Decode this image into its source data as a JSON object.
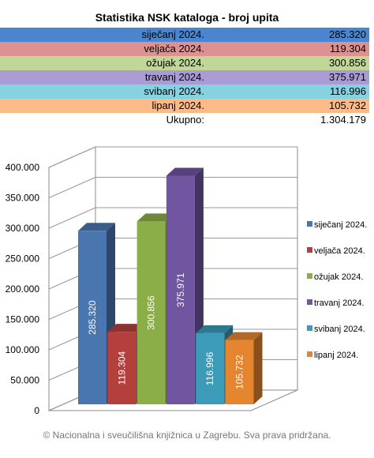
{
  "title": "Statistika NSK kataloga - broj upita",
  "table": {
    "rows": [
      {
        "label": "siječanj 2024.",
        "value": "285.320",
        "color": "#4a86d0"
      },
      {
        "label": "veljača 2024.",
        "value": "119.304",
        "color": "#dd9291"
      },
      {
        "label": "ožujak 2024.",
        "value": "300.856",
        "color": "#c0d797"
      },
      {
        "label": "travanj 2024.",
        "value": "375.971",
        "color": "#a99cd2"
      },
      {
        "label": "svibanj 2024.",
        "value": "116.996",
        "color": "#86d2e0"
      },
      {
        "label": "lipanj 2024.",
        "value": "105.732",
        "color": "#fbbb88"
      }
    ],
    "total_label": "Ukupno:",
    "total_value": "1.304.179"
  },
  "chart_data": {
    "type": "bar",
    "categories": [
      "siječanj 2024.",
      "veljača 2024.",
      "ožujak 2024.",
      "travanj 2024.",
      "svibanj 2024.",
      "lipanj 2024."
    ],
    "values": [
      285320,
      119304,
      300856,
      375971,
      116996,
      105732
    ],
    "value_labels": [
      "285.320",
      "119.304",
      "300.856",
      "375.971",
      "116.996",
      "105.732"
    ],
    "colors": [
      "#4a76b0",
      "#b4403d",
      "#8cae48",
      "#7055a0",
      "#3c9bb8",
      "#e5852f"
    ],
    "ylim": [
      0,
      400000
    ],
    "yticks": [
      0,
      50000,
      100000,
      150000,
      200000,
      250000,
      300000,
      350000,
      400000
    ],
    "ytick_labels": [
      "0",
      "50.000",
      "100.000",
      "150.000",
      "200.000",
      "250.000",
      "300.000",
      "350.000",
      "400.000"
    ],
    "grid": true,
    "legend_position": "right",
    "style": "3d"
  },
  "footer": "© Nacionalna i sveučilišna knjižnica u Zagrebu. Sva prava pridržana."
}
